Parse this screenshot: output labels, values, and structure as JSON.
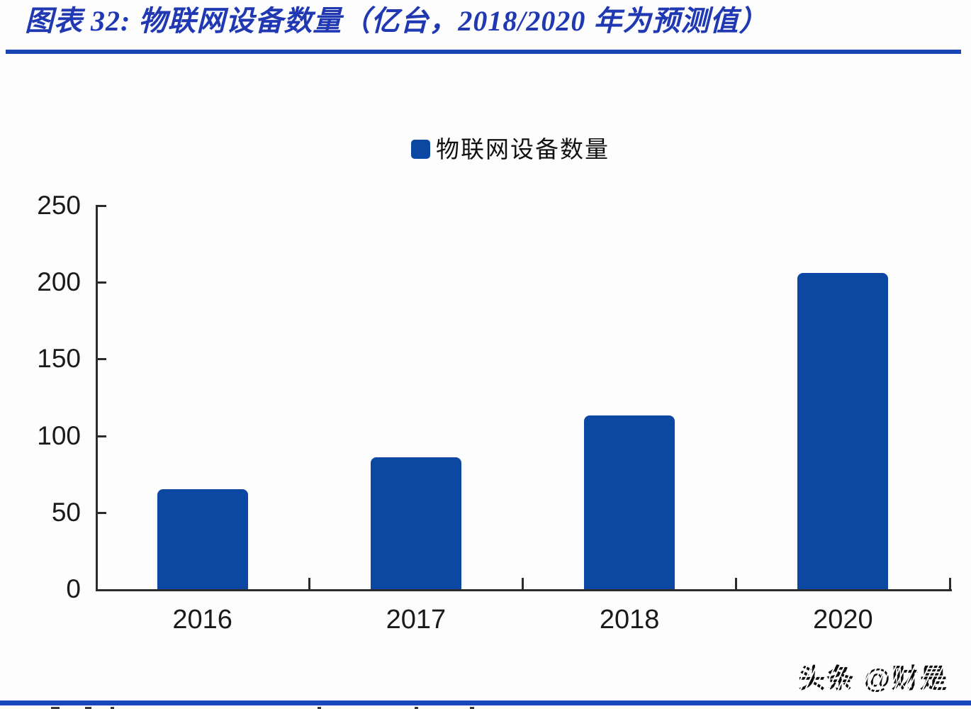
{
  "header": {
    "title": "图表 32:  物联网设备数量（亿台，2018/2020 年为预测值）"
  },
  "legend": {
    "label": "物联网设备数量"
  },
  "chart_data": {
    "type": "bar",
    "title": "物联网设备数量（亿台，2018/2020 年为预测值）",
    "categories": [
      "2016",
      "2017",
      "2018",
      "2020"
    ],
    "series": [
      {
        "name": "物联网设备数量",
        "values": [
          65,
          86,
          113,
          206
        ]
      }
    ],
    "xlabel": "",
    "ylabel": "",
    "ylim": [
      0,
      250
    ],
    "yticks": [
      0,
      50,
      100,
      150,
      200,
      250
    ],
    "grid": false,
    "legend_position": "top-center",
    "bar_color": "#0c47a2",
    "axis_color": "#2b2b2b"
  },
  "watermark": {
    "text": "头条 @财是"
  },
  "colors": {
    "accent_blue": "#1a45b5",
    "bar_blue": "#0c47a2",
    "title_blue": "#2039b2",
    "text_dark": "#1a1a1a"
  }
}
